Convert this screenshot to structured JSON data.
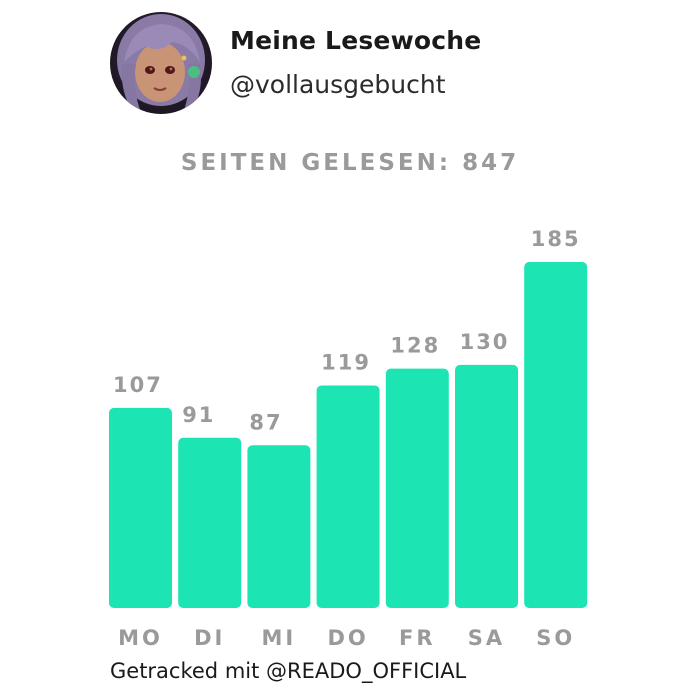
{
  "profile": {
    "name": "Meine Lesewoche",
    "handle": "@vollausgebucht"
  },
  "summary": {
    "label": "SEITEN GELESEN:",
    "total": "847"
  },
  "footer": {
    "prefix": "Getracked mit",
    "brand": "@READO_OFFICIAL"
  },
  "colors": {
    "bar": "#1de4b3",
    "value_text": "#9a9a9a",
    "day_text": "#9a9a9a"
  },
  "chart_data": {
    "type": "bar",
    "categories": [
      "MO",
      "DI",
      "MI",
      "DO",
      "FR",
      "SA",
      "SO"
    ],
    "values": [
      107,
      91,
      87,
      119,
      128,
      130,
      185
    ],
    "title": "",
    "xlabel": "",
    "ylabel": "",
    "ylim": [
      0,
      185
    ],
    "grid": false,
    "data_labels": true
  }
}
